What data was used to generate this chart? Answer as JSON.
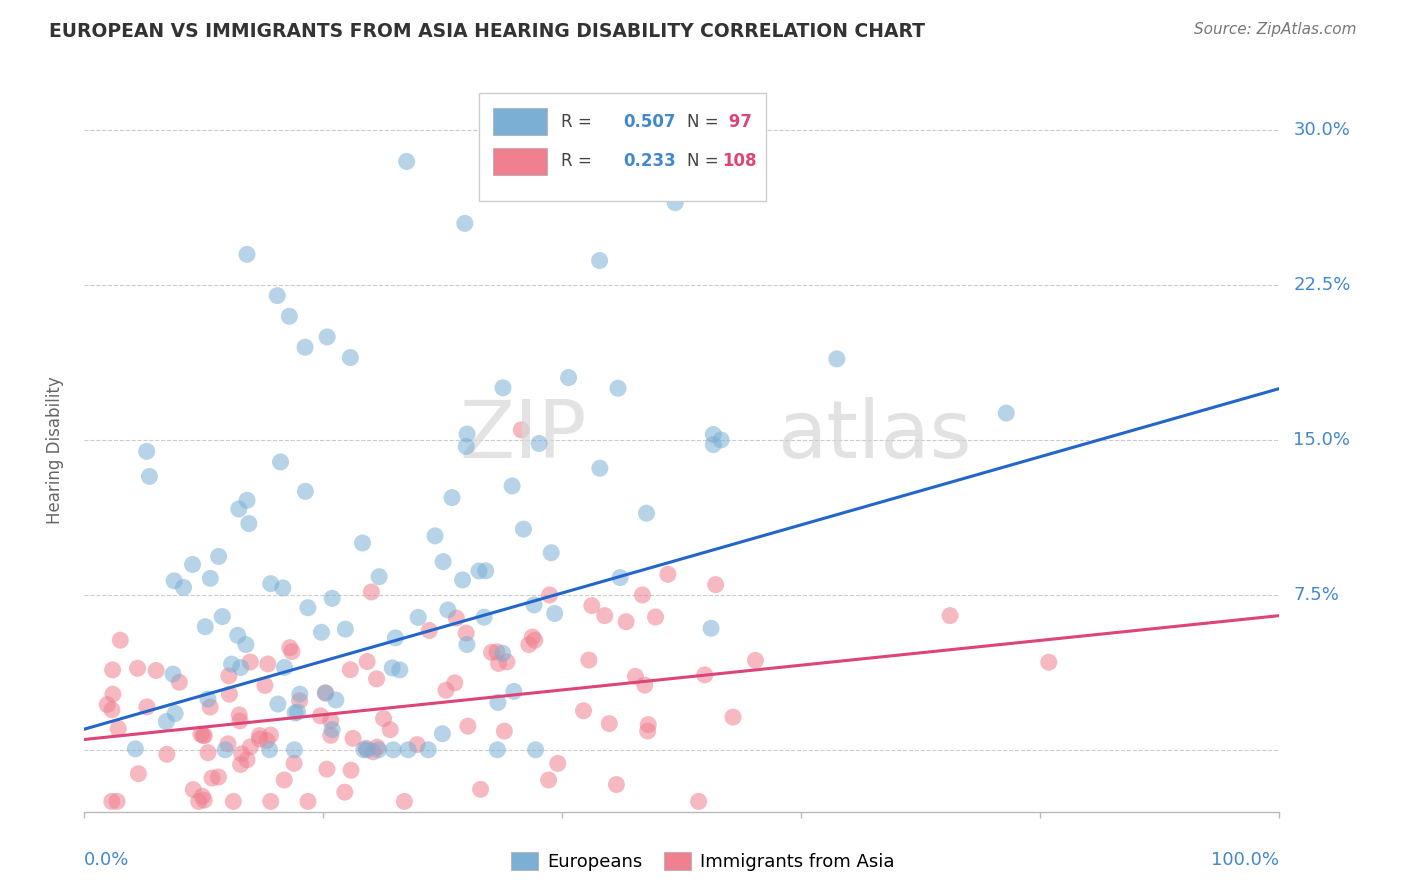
{
  "title": "EUROPEAN VS IMMIGRANTS FROM ASIA HEARING DISABILITY CORRELATION CHART",
  "source": "Source: ZipAtlas.com",
  "ylabel": "Hearing Disability",
  "yticks": [
    0.0,
    0.075,
    0.15,
    0.225,
    0.3
  ],
  "ytick_labels": [
    "",
    "7.5%",
    "15.0%",
    "22.5%",
    "30.0%"
  ],
  "xlim": [
    0.0,
    1.0
  ],
  "ylim": [
    -0.03,
    0.32
  ],
  "legend_labels_bottom": [
    "Europeans",
    "Immigrants from Asia"
  ],
  "european_color": "#7bafd4",
  "asian_color": "#f08090",
  "european_line_color": "#2266cc",
  "asian_line_color": "#dd4477",
  "watermark_zip": "ZIP",
  "watermark_atlas": "atlas",
  "background_color": "#ffffff",
  "grid_color": "#cccccc",
  "N_european": 97,
  "N_asian": 108,
  "european_seed": 42,
  "asian_seed": 7,
  "title_color": "#333333",
  "source_color": "#777777",
  "axis_label_color": "#4488cc",
  "eu_line_start": 0.01,
  "eu_line_end": 0.175,
  "as_line_start": 0.005,
  "as_line_end": 0.065
}
